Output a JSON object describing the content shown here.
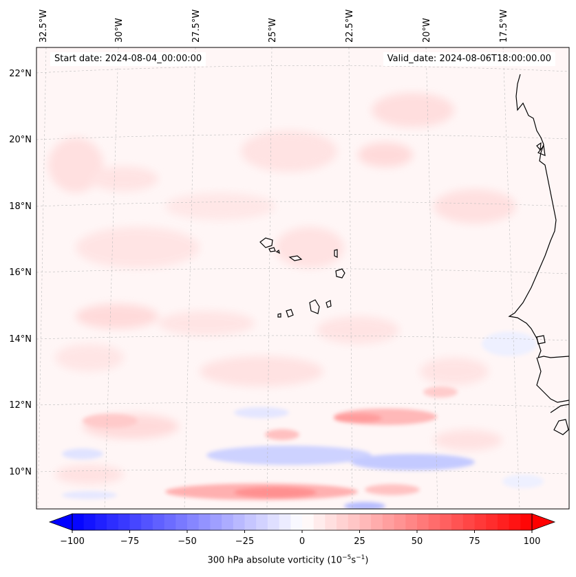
{
  "header": {
    "start_date": "Start date: 2024-08-04_00:00:00",
    "valid_date": "Valid_date: 2024-08-06T18:00:00.00"
  },
  "map": {
    "projection": "conic",
    "lon_range": [
      -32.5,
      -15.5
    ],
    "lat_range": [
      8.8,
      22.8
    ],
    "lon_ticks": [
      "32.5°W",
      "30°W",
      "27.5°W",
      "25°W",
      "22.5°W",
      "20°W",
      "17.5°W"
    ],
    "lat_ticks": [
      "22°N",
      "20°N",
      "18°N",
      "16°N",
      "14°N",
      "12°N",
      "10°N"
    ],
    "gridlines": true,
    "field_colormap": "bwr"
  },
  "colorbar": {
    "title": "300 hPa absolute vorticity (10",
    "title_exp1": "−5",
    "title_mid": "s",
    "title_exp2": "−1",
    "title_end": ")",
    "ticks": [
      "−100",
      "−75",
      "−50",
      "−25",
      "0",
      "25",
      "50",
      "75",
      "100"
    ],
    "range": [
      -100,
      100
    ],
    "extend": "both",
    "min_color": "#0000ff",
    "max_color": "#ff0000"
  }
}
